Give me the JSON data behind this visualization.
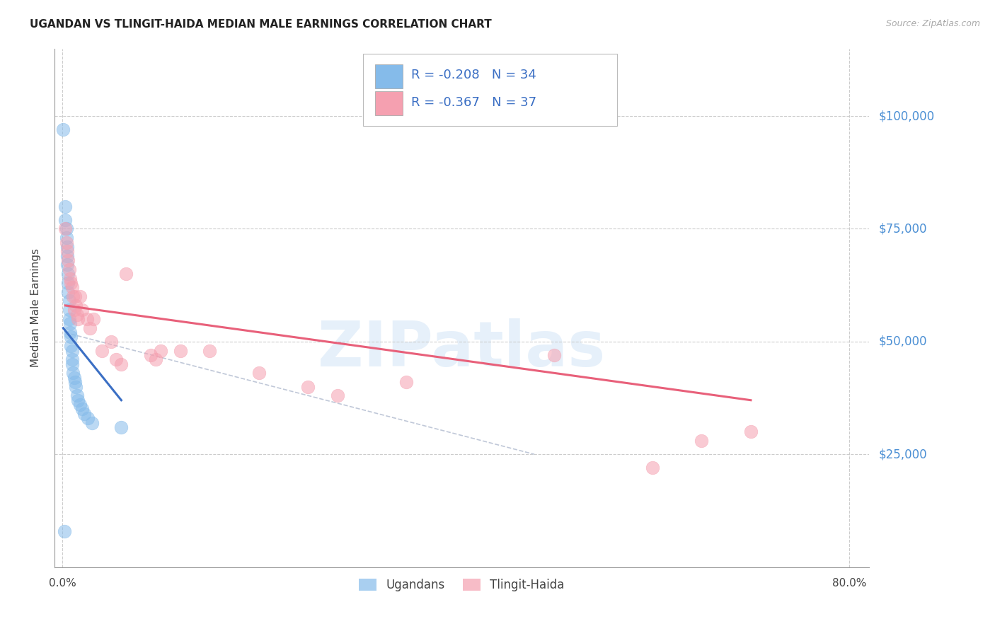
{
  "title": "UGANDAN VS TLINGIT-HAIDA MEDIAN MALE EARNINGS CORRELATION CHART",
  "source": "Source: ZipAtlas.com",
  "ylabel": "Median Male Earnings",
  "watermark": "ZIPatlas",
  "ugandan_R": -0.208,
  "ugandan_N": 34,
  "tlingit_R": -0.367,
  "tlingit_N": 37,
  "ugandan_color": "#85BBEA",
  "tlingit_color": "#F5A0B0",
  "ugandan_line_color": "#3B6FC4",
  "tlingit_line_color": "#E8607A",
  "dashed_line_color": "#C0C8D8",
  "ytick_labels": [
    "$25,000",
    "$50,000",
    "$75,000",
    "$100,000"
  ],
  "ytick_values": [
    25000,
    50000,
    75000,
    100000
  ],
  "ytick_color": "#4B8FD4",
  "background_color": "#FFFFFF",
  "ugandan_x": [
    0.001,
    0.003,
    0.003,
    0.004,
    0.004,
    0.005,
    0.005,
    0.005,
    0.006,
    0.006,
    0.006,
    0.007,
    0.007,
    0.007,
    0.008,
    0.008,
    0.009,
    0.009,
    0.01,
    0.01,
    0.01,
    0.011,
    0.012,
    0.013,
    0.014,
    0.015,
    0.016,
    0.018,
    0.02,
    0.022,
    0.026,
    0.03,
    0.06,
    0.002
  ],
  "ugandan_y": [
    97000,
    80000,
    77000,
    75000,
    73000,
    71000,
    69000,
    67000,
    65000,
    63000,
    61000,
    59000,
    57000,
    55000,
    54000,
    52000,
    51000,
    49000,
    48000,
    46000,
    45000,
    43000,
    42000,
    41000,
    40000,
    38000,
    37000,
    36000,
    35000,
    34000,
    33000,
    32000,
    31000,
    8000
  ],
  "tlingit_x": [
    0.003,
    0.004,
    0.005,
    0.006,
    0.007,
    0.008,
    0.009,
    0.01,
    0.011,
    0.012,
    0.013,
    0.014,
    0.015,
    0.016,
    0.018,
    0.02,
    0.025,
    0.028,
    0.032,
    0.04,
    0.05,
    0.055,
    0.06,
    0.065,
    0.09,
    0.095,
    0.1,
    0.12,
    0.2,
    0.28,
    0.35,
    0.5,
    0.6,
    0.65,
    0.7,
    0.15,
    0.25
  ],
  "tlingit_y": [
    75000,
    72000,
    70000,
    68000,
    66000,
    64000,
    63000,
    62000,
    60000,
    57000,
    60000,
    58000,
    56000,
    55000,
    60000,
    57000,
    55000,
    53000,
    55000,
    48000,
    50000,
    46000,
    45000,
    65000,
    47000,
    46000,
    48000,
    48000,
    43000,
    38000,
    41000,
    47000,
    22000,
    28000,
    30000,
    48000,
    40000
  ],
  "xlim": [
    -0.008,
    0.82
  ],
  "ylim": [
    0,
    115000
  ],
  "ugandan_line_x": [
    0.001,
    0.06
  ],
  "ugandan_line_y": [
    53000,
    37000
  ],
  "tlingit_line_x": [
    0.003,
    0.7
  ],
  "tlingit_line_y": [
    58000,
    37000
  ],
  "dash_line_x": [
    0.003,
    0.48
  ],
  "dash_line_y": [
    52000,
    25000
  ]
}
